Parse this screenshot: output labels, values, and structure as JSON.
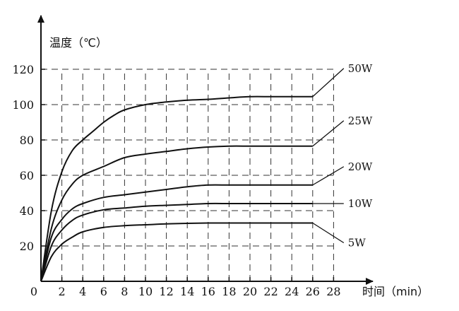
{
  "chart_data": {
    "type": "line",
    "xlabel": "时间（min）",
    "ylabel": "温度（℃）",
    "x_ticks": [
      0,
      2,
      4,
      6,
      8,
      10,
      12,
      14,
      16,
      18,
      20,
      22,
      24,
      26,
      28
    ],
    "y_ticks": [
      0,
      20,
      40,
      60,
      80,
      100,
      120
    ],
    "xlim": [
      0,
      28
    ],
    "ylim": [
      0,
      120
    ],
    "grid": true,
    "grid_style": "dashed",
    "series": [
      {
        "name": "50W",
        "x": [
          0,
          1,
          2,
          3,
          4,
          5,
          6,
          7,
          8,
          10,
          12,
          14,
          16,
          18,
          20,
          22,
          24,
          26
        ],
        "y": [
          0,
          40,
          62,
          74,
          80,
          85,
          90,
          94,
          97,
          100,
          101.5,
          102.5,
          103,
          103.8,
          104.5,
          104.5,
          104.5,
          104.5
        ]
      },
      {
        "name": "25W",
        "x": [
          0,
          1,
          2,
          3,
          4,
          6,
          8,
          10,
          12,
          14,
          16,
          18,
          20,
          22,
          24,
          26
        ],
        "y": [
          0,
          30,
          46,
          55,
          60,
          65,
          70,
          72,
          73.5,
          75,
          76,
          76.5,
          76.5,
          76.5,
          76.5,
          76.5
        ]
      },
      {
        "name": "20W",
        "x": [
          0,
          1,
          2,
          3,
          4,
          6,
          8,
          10,
          12,
          14,
          16,
          18,
          20,
          22,
          24,
          26
        ],
        "y": [
          0,
          25,
          35,
          41,
          44,
          47.5,
          49,
          50.5,
          52,
          53.5,
          54.5,
          54.5,
          54.5,
          54.5,
          54.5,
          54.5
        ]
      },
      {
        "name": "10W",
        "x": [
          0,
          1,
          2,
          3,
          4,
          6,
          8,
          10,
          12,
          14,
          16,
          18,
          20,
          22,
          24,
          26
        ],
        "y": [
          0,
          20,
          29,
          34.5,
          37.5,
          40.5,
          41.5,
          42.5,
          43,
          43.5,
          44,
          44,
          44,
          44,
          44,
          44
        ]
      },
      {
        "name": "5W",
        "x": [
          0,
          1,
          2,
          3,
          4,
          6,
          8,
          10,
          12,
          14,
          16,
          18,
          20,
          22,
          24,
          26
        ],
        "y": [
          0,
          14,
          21,
          25,
          28,
          30.5,
          31.5,
          32,
          32.5,
          32.8,
          33,
          33,
          33,
          33,
          33,
          33
        ]
      }
    ]
  }
}
